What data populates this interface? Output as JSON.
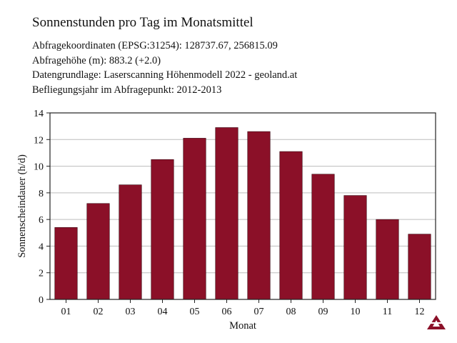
{
  "header": {
    "title": "Sonnenstunden pro Tag im Monatsmittel",
    "coordinates": "Abfragekoordinaten (EPSG:31254): 128737.67, 256815.09",
    "height": "Abfragehöhe (m): 883.2 (+2.0)",
    "source": "Datengrundlage: Laserscanning Höhenmodell 2022 - geoland.at",
    "flight_year": "Befliegungsjahr im Abfragepunkt: 2012-2013"
  },
  "chart_data": {
    "type": "bar",
    "title": "",
    "xlabel": "Monat",
    "ylabel": "Sonnenscheindauer (h/d)",
    "categories": [
      "01",
      "02",
      "03",
      "04",
      "05",
      "06",
      "07",
      "08",
      "09",
      "10",
      "11",
      "12"
    ],
    "values": [
      5.4,
      7.2,
      8.6,
      10.5,
      12.1,
      12.9,
      12.6,
      11.1,
      9.4,
      7.8,
      6.0,
      4.9
    ],
    "yticks": [
      "0",
      "2",
      "4",
      "6",
      "8",
      "10",
      "12",
      "14"
    ],
    "ylim": [
      0,
      14
    ],
    "grid": true,
    "bar_color": "#8b1028",
    "grid_color": "#bdbdbd"
  },
  "logo": {
    "icon": "triangle-logo-icon",
    "color": "#8b1028"
  }
}
